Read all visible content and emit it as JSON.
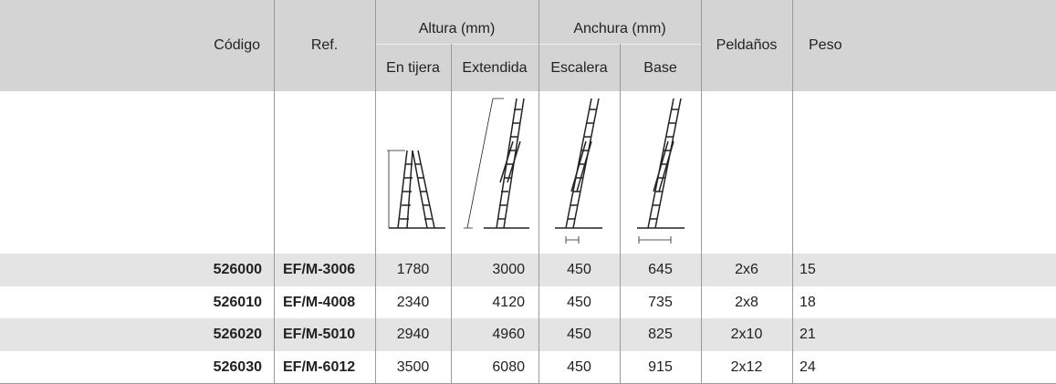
{
  "header": {
    "codigo": "Código",
    "ref": "Ref.",
    "altura": "Altura (mm)",
    "anchura": "Anchura (mm)",
    "en_tijera": "En tijera",
    "extendida": "Extendida",
    "escalera": "Escalera",
    "base": "Base",
    "peldanos": "Peldaños",
    "peso": "Peso"
  },
  "table": {
    "rows": [
      [
        "526000",
        "EF/M-3006",
        "1780",
        "3000",
        "450",
        "645",
        "2x6",
        "15"
      ],
      [
        "526010",
        "EF/M-4008",
        "2340",
        "4120",
        "450",
        "735",
        "2x8",
        "18"
      ],
      [
        "526020",
        "EF/M-5010",
        "2940",
        "4960",
        "450",
        "825",
        "2x10",
        "21"
      ],
      [
        "526030",
        "EF/M-6012",
        "3500",
        "6080",
        "450",
        "915",
        "2x12",
        "24"
      ]
    ]
  }
}
